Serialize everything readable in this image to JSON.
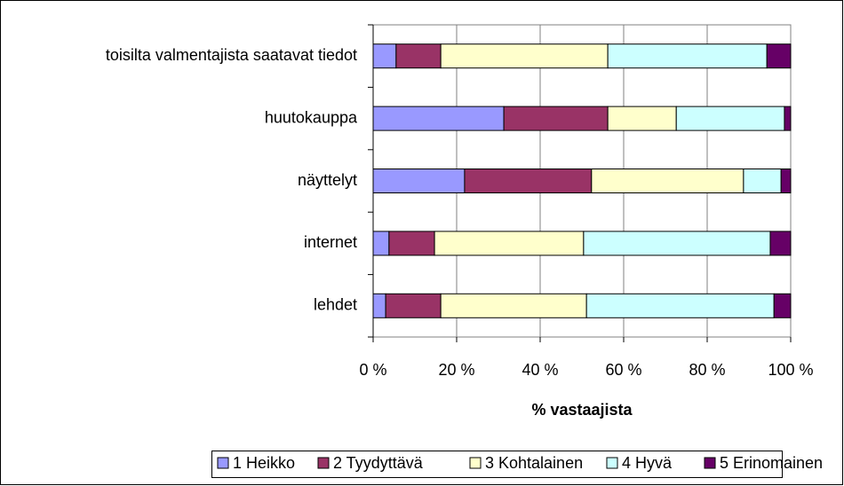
{
  "chart_data": {
    "type": "stacked_barh",
    "categories": [
      "toisilta valmentajista saatavat tiedot",
      "huutokauppa",
      "näyttelyt",
      "internet",
      "lehdet"
    ],
    "series": [
      {
        "name": "1 Heikko",
        "color": "#9999ff",
        "values": [
          5.5,
          31.3,
          21.9,
          3.8,
          3
        ]
      },
      {
        "name": "2 Tyydyttävä",
        "color": "#993366",
        "values": [
          10.7,
          24.9,
          30.4,
          10.9,
          13.2
        ]
      },
      {
        "name": "3 Kohtalainen",
        "color": "#ffffcc",
        "values": [
          40,
          16.4,
          36.4,
          35.7,
          34.9
        ]
      },
      {
        "name": "4 Hyvä",
        "color": "#ccffff",
        "values": [
          38.1,
          25.9,
          9,
          44.7,
          44.9
        ]
      },
      {
        "name": "5 Erinomainen",
        "color": "#660066",
        "values": [
          5.7,
          1.5,
          2.3,
          4.9,
          4
        ]
      }
    ],
    "xlabel": "% vastaajista",
    "xlim": [
      0,
      100
    ],
    "xticks": [
      {
        "value": 0,
        "label": "0 %"
      },
      {
        "value": 20,
        "label": "20 %"
      },
      {
        "value": 40,
        "label": "40 %"
      },
      {
        "value": 60,
        "label": "60 %"
      },
      {
        "value": 80,
        "label": "80 %"
      },
      {
        "value": 100,
        "label": "100 %"
      }
    ],
    "grid": true,
    "legend": "bottom"
  }
}
